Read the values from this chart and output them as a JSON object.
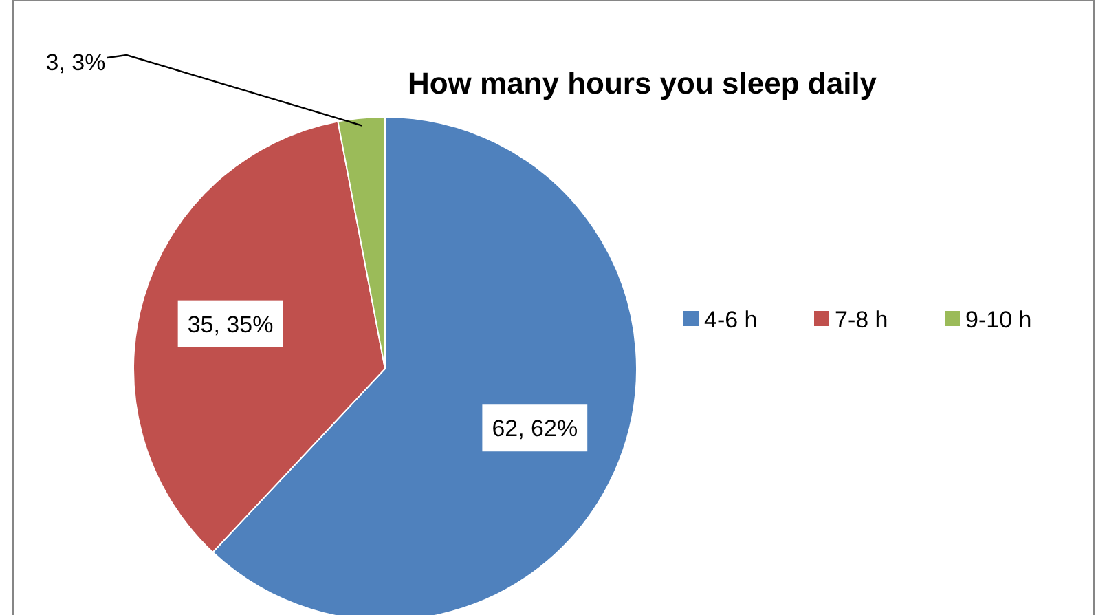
{
  "chart_data": {
    "type": "pie",
    "title": "How many hours you sleep daily",
    "categories": [
      "4-6 h",
      "7-8 h",
      "9-10 h"
    ],
    "values": [
      62,
      35,
      3
    ],
    "colors": [
      "#4f81bd",
      "#c0504d",
      "#9bbb59"
    ],
    "value_labels": [
      "62, 62%",
      "35, 35%",
      "3, 3%"
    ],
    "legend": "right"
  }
}
